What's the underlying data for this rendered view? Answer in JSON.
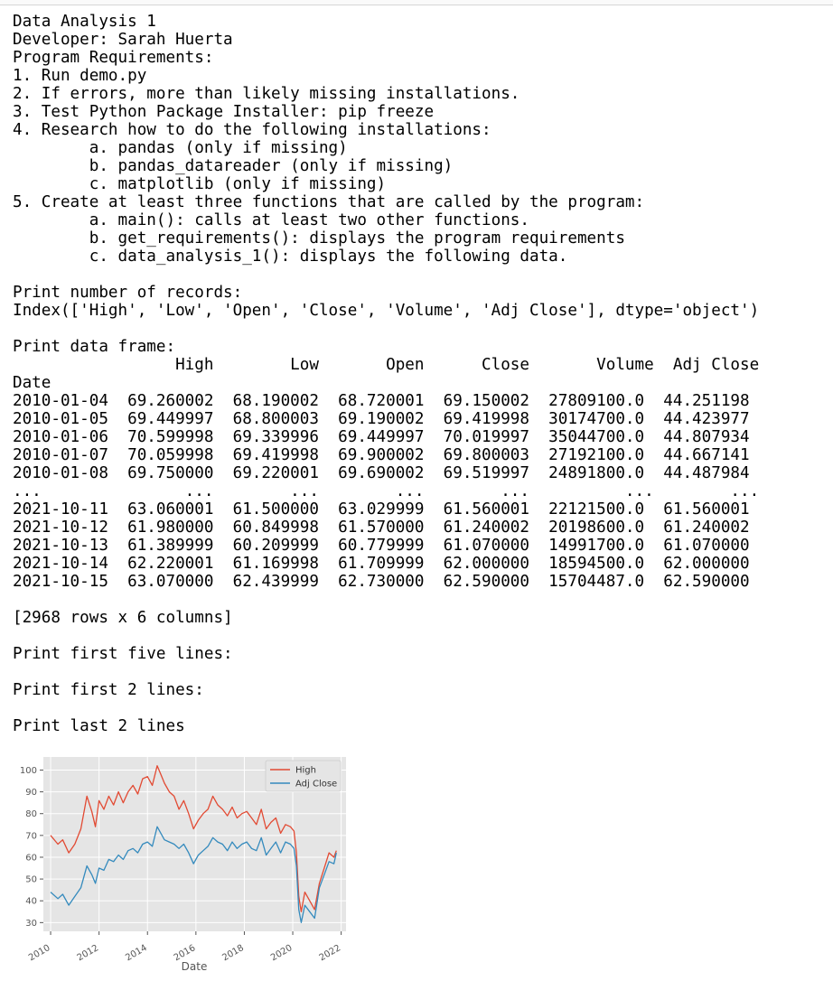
{
  "output": {
    "lines": [
      "Data Analysis 1",
      "Developer: Sarah Huerta",
      "Program Requirements:",
      "1. Run demo.py",
      "2. If errors, more than likely missing installations.",
      "3. Test Python Package Installer: pip freeze",
      "4. Research how to do the following installations:",
      "        a. pandas (only if missing)",
      "        b. pandas_datareader (only if missing)",
      "        c. matplotlib (only if missing)",
      "5. Create at least three functions that are called by the program:",
      "        a. main(): calls at least two other functions.",
      "        b. get_requirements(): displays the program requirements",
      "        c. data_analysis_1(): displays the following data.",
      "",
      "Print number of records:",
      "Index(['High', 'Low', 'Open', 'Close', 'Volume', 'Adj Close'], dtype='object')",
      "",
      "Print data frame:",
      "                 High        Low       Open      Close       Volume  Adj Close",
      "Date",
      "2010-01-04  69.260002  68.190002  68.720001  69.150002  27809100.0  44.251198",
      "2010-01-05  69.449997  68.800003  69.190002  69.419998  30174700.0  44.423977",
      "2010-01-06  70.599998  69.339996  69.449997  70.019997  35044700.0  44.807934",
      "2010-01-07  70.059998  69.419998  69.900002  69.800003  27192100.0  44.667141",
      "2010-01-08  69.750000  69.220001  69.690002  69.519997  24891800.0  44.487984",
      "...               ...        ...        ...        ...          ...        ...",
      "2021-10-11  63.060001  61.500000  63.029999  61.560001  22121500.0  61.560001",
      "2021-10-12  61.980000  60.849998  61.570000  61.240002  20198600.0  61.240002",
      "2021-10-13  61.389999  60.209999  60.779999  61.070000  14991700.0  61.070000",
      "2021-10-14  62.220001  61.169998  61.709999  62.000000  18594500.0  62.000000",
      "2021-10-15  63.070000  62.439999  62.730000  62.590000  15704487.0  62.590000",
      "",
      "[2968 rows x 6 columns]",
      "",
      "Print first five lines:",
      "",
      "Print first 2 lines:",
      "",
      "Print last 2 lines"
    ]
  },
  "chart_data": {
    "type": "line",
    "title": "",
    "xlabel": "Date",
    "ylabel": "",
    "xlim": [
      2009.7,
      2022.2
    ],
    "ylim": [
      26,
      106
    ],
    "xticks": [
      "2010",
      "2012",
      "2014",
      "2016",
      "2018",
      "2020",
      "2022"
    ],
    "yticks": [
      30,
      40,
      50,
      60,
      70,
      80,
      90,
      100
    ],
    "grid": true,
    "legend": "top-right",
    "style": "ggplot",
    "series": [
      {
        "name": "High",
        "color": "#E24A33",
        "x": [
          2010.0,
          2010.3,
          2010.5,
          2010.75,
          2011.0,
          2011.25,
          2011.5,
          2011.7,
          2011.85,
          2012.0,
          2012.2,
          2012.4,
          2012.6,
          2012.8,
          2013.0,
          2013.2,
          2013.4,
          2013.6,
          2013.8,
          2014.0,
          2014.2,
          2014.4,
          2014.55,
          2014.7,
          2014.9,
          2015.1,
          2015.3,
          2015.5,
          2015.7,
          2015.9,
          2016.1,
          2016.3,
          2016.5,
          2016.7,
          2016.9,
          2017.1,
          2017.3,
          2017.5,
          2017.7,
          2017.9,
          2018.1,
          2018.3,
          2018.5,
          2018.7,
          2018.9,
          2019.1,
          2019.3,
          2019.5,
          2019.7,
          2019.9,
          2020.05,
          2020.15,
          2020.25,
          2020.35,
          2020.5,
          2020.7,
          2020.9,
          2021.1,
          2021.3,
          2021.5,
          2021.7,
          2021.8
        ],
        "values": [
          70,
          66,
          68,
          62,
          66,
          73,
          88,
          81,
          74,
          86,
          82,
          88,
          84,
          90,
          85,
          90,
          93,
          89,
          96,
          97,
          93,
          102,
          98,
          94,
          90,
          88,
          82,
          86,
          80,
          73,
          77,
          80,
          82,
          88,
          84,
          82,
          79,
          83,
          78,
          80,
          81,
          78,
          75,
          82,
          73,
          76,
          78,
          71,
          75,
          74,
          72,
          62,
          42,
          35,
          44,
          40,
          36,
          48,
          55,
          62,
          60,
          63
        ]
      },
      {
        "name": "Adj Close",
        "color": "#348ABD",
        "x": [
          2010.0,
          2010.3,
          2010.5,
          2010.75,
          2011.0,
          2011.25,
          2011.5,
          2011.7,
          2011.85,
          2012.0,
          2012.2,
          2012.4,
          2012.6,
          2012.8,
          2013.0,
          2013.2,
          2013.4,
          2013.6,
          2013.8,
          2014.0,
          2014.2,
          2014.4,
          2014.55,
          2014.7,
          2014.9,
          2015.1,
          2015.3,
          2015.5,
          2015.7,
          2015.9,
          2016.1,
          2016.3,
          2016.5,
          2016.7,
          2016.9,
          2017.1,
          2017.3,
          2017.5,
          2017.7,
          2017.9,
          2018.1,
          2018.3,
          2018.5,
          2018.7,
          2018.9,
          2019.1,
          2019.3,
          2019.5,
          2019.7,
          2019.9,
          2020.05,
          2020.15,
          2020.25,
          2020.35,
          2020.5,
          2020.7,
          2020.9,
          2021.1,
          2021.3,
          2021.5,
          2021.7,
          2021.8
        ],
        "values": [
          44,
          41,
          43,
          38,
          42,
          46,
          56,
          52,
          48,
          55,
          54,
          59,
          58,
          61,
          59,
          63,
          64,
          62,
          66,
          67,
          65,
          74,
          71,
          68,
          67,
          66,
          64,
          66,
          62,
          57,
          61,
          63,
          65,
          69,
          67,
          66,
          63,
          67,
          64,
          66,
          67,
          64,
          63,
          69,
          61,
          64,
          67,
          62,
          67,
          66,
          64,
          56,
          36,
          30,
          38,
          35,
          32,
          46,
          52,
          58,
          57,
          62
        ]
      }
    ]
  }
}
